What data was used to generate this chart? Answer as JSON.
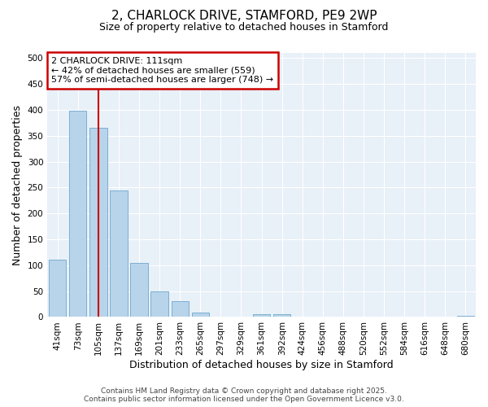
{
  "title_line1": "2, CHARLOCK DRIVE, STAMFORD, PE9 2WP",
  "title_line2": "Size of property relative to detached houses in Stamford",
  "xlabel": "Distribution of detached houses by size in Stamford",
  "ylabel": "Number of detached properties",
  "footer_line1": "Contains HM Land Registry data © Crown copyright and database right 2025.",
  "footer_line2": "Contains public sector information licensed under the Open Government Licence v3.0.",
  "categories": [
    "41sqm",
    "73sqm",
    "105sqm",
    "137sqm",
    "169sqm",
    "201sqm",
    "233sqm",
    "265sqm",
    "297sqm",
    "329sqm",
    "361sqm",
    "392sqm",
    "424sqm",
    "456sqm",
    "488sqm",
    "520sqm",
    "552sqm",
    "584sqm",
    "616sqm",
    "648sqm",
    "680sqm"
  ],
  "values": [
    110,
    398,
    365,
    245,
    105,
    50,
    30,
    8,
    0,
    0,
    5,
    5,
    0,
    0,
    0,
    0,
    0,
    0,
    0,
    0,
    2
  ],
  "bar_color": "#b8d4ea",
  "bar_edge_color": "#7bafd4",
  "fig_bg_color": "#ffffff",
  "ax_bg_color": "#e8f0f8",
  "grid_color": "#ffffff",
  "annotation_text": "2 CHARLOCK DRIVE: 111sqm\n← 42% of detached houses are smaller (559)\n57% of semi-detached houses are larger (748) →",
  "annotation_box_facecolor": "#ffffff",
  "annotation_box_edgecolor": "#cc0000",
  "vline_x": 2,
  "vline_color": "#cc0000",
  "ylim": [
    0,
    510
  ],
  "yticks": [
    0,
    50,
    100,
    150,
    200,
    250,
    300,
    350,
    400,
    450,
    500
  ],
  "title1_fontsize": 11,
  "title2_fontsize": 9,
  "tick_fontsize": 7.5,
  "axis_label_fontsize": 9,
  "footer_fontsize": 6.5,
  "ann_fontsize": 8
}
